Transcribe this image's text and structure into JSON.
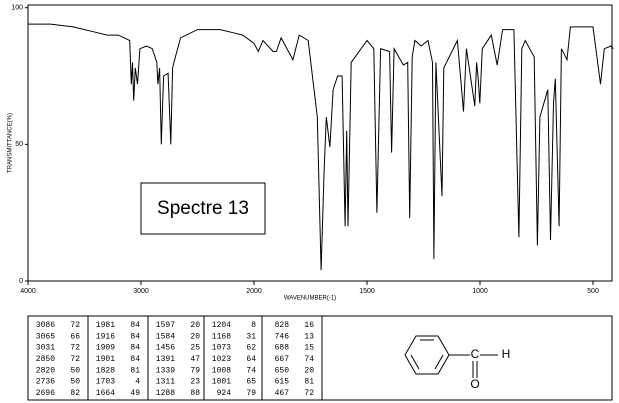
{
  "chart_data": {
    "type": "line",
    "xlabel": "WAVENUMBER(-1)",
    "ylabel": "TRANSMITTANCE(%)",
    "annotation": "Spectre 13",
    "color": "#000000",
    "xlim": [
      4000,
      410
    ],
    "xticks": [
      4000,
      3000,
      2000,
      1500,
      1000,
      500
    ],
    "ylim": [
      0,
      101
    ],
    "yticks": [
      0,
      50,
      100
    ],
    "x": [
      4000,
      3800,
      3600,
      3400,
      3300,
      3200,
      3100,
      3086,
      3075,
      3065,
      3050,
      3031,
      3010,
      2950,
      2900,
      2860,
      2850,
      2835,
      2820,
      2800,
      2760,
      2736,
      2720,
      2696,
      2650,
      2500,
      2300,
      2200,
      2100,
      2000,
      1981,
      1960,
      1916,
      1909,
      1901,
      1880,
      1828,
      1800,
      1760,
      1720,
      1703,
      1690,
      1680,
      1664,
      1650,
      1630,
      1610,
      1597,
      1590,
      1584,
      1570,
      1500,
      1470,
      1456,
      1440,
      1400,
      1391,
      1380,
      1339,
      1320,
      1311,
      1300,
      1288,
      1260,
      1230,
      1210,
      1204,
      1195,
      1168,
      1160,
      1100,
      1073,
      1060,
      1023,
      1015,
      1008,
      1001,
      990,
      950,
      924,
      900,
      850,
      828,
      815,
      800,
      760,
      746,
      735,
      700,
      688,
      675,
      667,
      650,
      640,
      615,
      600,
      500,
      467,
      450,
      420,
      410
    ],
    "values": [
      94,
      94,
      93,
      91,
      90,
      90,
      88,
      72,
      80,
      66,
      78,
      72,
      85,
      86,
      85,
      80,
      72,
      78,
      50,
      75,
      76,
      50,
      78,
      82,
      89,
      92,
      92,
      91,
      90,
      87,
      84,
      88,
      84,
      84,
      84,
      89,
      81,
      90,
      88,
      60,
      4,
      40,
      60,
      49,
      70,
      75,
      75,
      20,
      55,
      20,
      80,
      88,
      85,
      25,
      85,
      84,
      47,
      85,
      79,
      80,
      23,
      82,
      88,
      86,
      88,
      80,
      8,
      80,
      31,
      78,
      88,
      62,
      85,
      64,
      80,
      74,
      65,
      85,
      90,
      79,
      92,
      92,
      16,
      85,
      88,
      82,
      13,
      60,
      70,
      15,
      65,
      74,
      20,
      85,
      81,
      93,
      93,
      72,
      85,
      86,
      85
    ]
  },
  "peak_table": [
    [
      [
        3086,
        72
      ],
      [
        3065,
        66
      ],
      [
        3031,
        72
      ],
      [
        2850,
        72
      ],
      [
        2820,
        50
      ],
      [
        2736,
        50
      ],
      [
        2696,
        82
      ]
    ],
    [
      [
        1981,
        84
      ],
      [
        1916,
        84
      ],
      [
        1909,
        84
      ],
      [
        1901,
        84
      ],
      [
        1828,
        81
      ],
      [
        1703,
        4
      ],
      [
        1664,
        49
      ]
    ],
    [
      [
        1597,
        20
      ],
      [
        1584,
        20
      ],
      [
        1456,
        25
      ],
      [
        1391,
        47
      ],
      [
        1339,
        79
      ],
      [
        1311,
        23
      ],
      [
        1288,
        88
      ]
    ],
    [
      [
        1204,
        8
      ],
      [
        1168,
        31
      ],
      [
        1073,
        62
      ],
      [
        1023,
        64
      ],
      [
        1008,
        74
      ],
      [
        1001,
        65
      ],
      [
        924,
        79
      ]
    ],
    [
      [
        828,
        16
      ],
      [
        746,
        13
      ],
      [
        688,
        15
      ],
      [
        667,
        74
      ],
      [
        650,
        20
      ],
      [
        615,
        81
      ],
      [
        467,
        72
      ]
    ]
  ],
  "structure": {
    "carbon": "C",
    "hydrogen": "H",
    "oxygen": "O"
  }
}
